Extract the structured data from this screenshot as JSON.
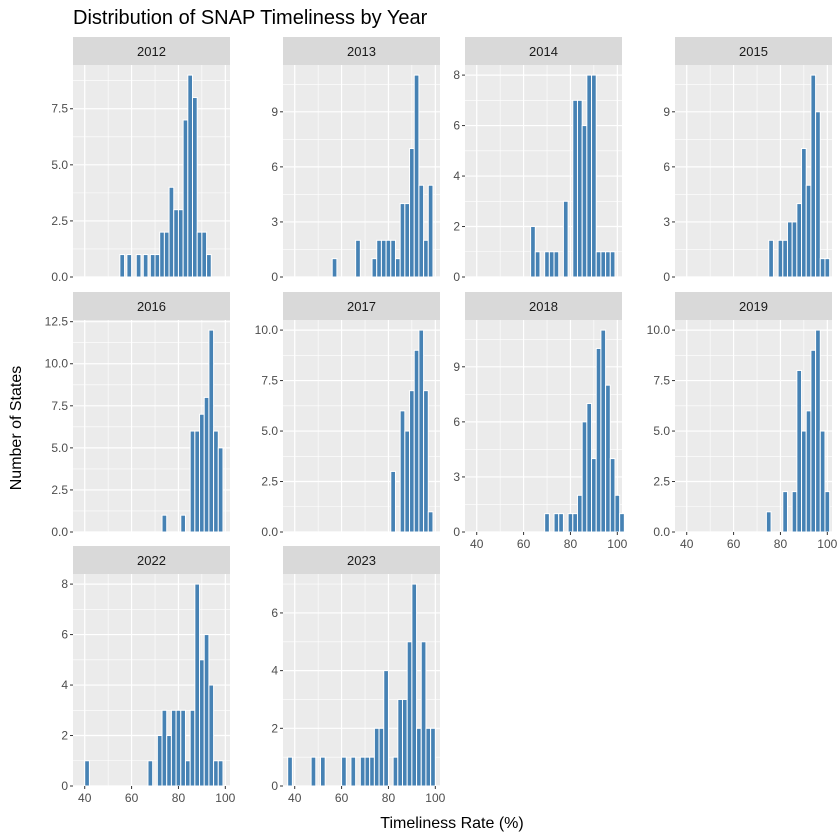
{
  "chart_data": {
    "type": "bar",
    "title": "Distribution of SNAP Timeliness by Year",
    "xlabel": "Timeliness Rate (%)",
    "ylabel": "Number of States",
    "x_ticks": [
      40,
      60,
      80,
      100
    ],
    "x_range": [
      35,
      102
    ],
    "bin_width": 2,
    "fill_color": "#4682B4",
    "panel_bg": "#EBEBEB",
    "strip_bg": "#D9D9D9",
    "grid": true,
    "panels": [
      {
        "year": "2012",
        "y_ticks": [
          0,
          2.5,
          5,
          7.5
        ],
        "y_tick_labels": [
          "0.0",
          "2.5",
          "5.0",
          "7.5"
        ],
        "y_max": 9.45,
        "bins": [
          [
            56,
            1
          ],
          [
            59,
            1
          ],
          [
            63,
            1
          ],
          [
            66,
            1
          ],
          [
            69,
            1
          ],
          [
            71,
            1
          ],
          [
            73,
            2
          ],
          [
            75,
            2
          ],
          [
            77,
            4
          ],
          [
            79,
            3
          ],
          [
            81,
            3
          ],
          [
            83,
            7
          ],
          [
            85,
            9
          ],
          [
            87,
            8
          ],
          [
            89,
            2
          ],
          [
            91,
            2
          ],
          [
            93,
            1
          ]
        ]
      },
      {
        "year": "2013",
        "y_ticks": [
          0,
          3,
          6,
          9
        ],
        "y_tick_labels": [
          "0",
          "3",
          "6",
          "9"
        ],
        "y_max": 11.55,
        "bins": [
          [
            57,
            1
          ],
          [
            67,
            2
          ],
          [
            74,
            1
          ],
          [
            76,
            2
          ],
          [
            78,
            2
          ],
          [
            80,
            2
          ],
          [
            82,
            2
          ],
          [
            84,
            1
          ],
          [
            86,
            4
          ],
          [
            88,
            4
          ],
          [
            90,
            7
          ],
          [
            92,
            11
          ],
          [
            94,
            5
          ],
          [
            96,
            2
          ],
          [
            98,
            5
          ]
        ]
      },
      {
        "year": "2014",
        "y_ticks": [
          0,
          2,
          4,
          6,
          8
        ],
        "y_tick_labels": [
          "0",
          "2",
          "4",
          "6",
          "8"
        ],
        "y_max": 8.4,
        "bins": [
          [
            64,
            2
          ],
          [
            66,
            1
          ],
          [
            70,
            1
          ],
          [
            72,
            1
          ],
          [
            74,
            1
          ],
          [
            78,
            3
          ],
          [
            82,
            7
          ],
          [
            84,
            7
          ],
          [
            86,
            6
          ],
          [
            88,
            8
          ],
          [
            90,
            8
          ],
          [
            92,
            1
          ],
          [
            94,
            1
          ],
          [
            96,
            1
          ],
          [
            98,
            1
          ]
        ]
      },
      {
        "year": "2015",
        "y_ticks": [
          0,
          3,
          6,
          9
        ],
        "y_tick_labels": [
          "0",
          "3",
          "6",
          "9"
        ],
        "y_max": 11.55,
        "bins": [
          [
            76,
            2
          ],
          [
            80,
            2
          ],
          [
            82,
            2
          ],
          [
            84,
            3
          ],
          [
            86,
            3
          ],
          [
            88,
            4
          ],
          [
            90,
            7
          ],
          [
            92,
            5
          ],
          [
            94,
            11
          ],
          [
            96,
            9
          ],
          [
            98,
            1
          ],
          [
            100,
            1
          ]
        ]
      },
      {
        "year": "2016",
        "y_ticks": [
          0,
          2.5,
          5,
          7.5,
          10,
          12.5
        ],
        "y_tick_labels": [
          "0.0",
          "2.5",
          "5.0",
          "7.5",
          "10.0",
          "12.5"
        ],
        "y_max": 12.6,
        "bins": [
          [
            74,
            1
          ],
          [
            82,
            1
          ],
          [
            86,
            6
          ],
          [
            88,
            6
          ],
          [
            90,
            7
          ],
          [
            92,
            8
          ],
          [
            94,
            12
          ],
          [
            96,
            6
          ],
          [
            98,
            5
          ]
        ]
      },
      {
        "year": "2017",
        "y_ticks": [
          0,
          2.5,
          5,
          7.5,
          10
        ],
        "y_tick_labels": [
          "0.0",
          "2.5",
          "5.0",
          "7.5",
          "10.0"
        ],
        "y_max": 10.5,
        "bins": [
          [
            82,
            3
          ],
          [
            86,
            6
          ],
          [
            88,
            5
          ],
          [
            90,
            7
          ],
          [
            92,
            9
          ],
          [
            94,
            10
          ],
          [
            96,
            7
          ],
          [
            98,
            1
          ]
        ]
      },
      {
        "year": "2018",
        "y_ticks": [
          0,
          3,
          6,
          9
        ],
        "y_tick_labels": [
          "0",
          "3",
          "6",
          "9"
        ],
        "y_max": 11.55,
        "bins": [
          [
            70,
            1
          ],
          [
            74,
            1
          ],
          [
            76,
            1
          ],
          [
            80,
            1
          ],
          [
            82,
            1
          ],
          [
            84,
            2
          ],
          [
            86,
            6
          ],
          [
            88,
            7
          ],
          [
            90,
            4
          ],
          [
            92,
            10
          ],
          [
            94,
            11
          ],
          [
            96,
            8
          ],
          [
            98,
            4
          ],
          [
            100,
            2
          ],
          [
            102,
            1
          ]
        ]
      },
      {
        "year": "2019",
        "y_ticks": [
          0,
          2.5,
          5,
          7.5,
          10
        ],
        "y_tick_labels": [
          "0.0",
          "2.5",
          "5.0",
          "7.5",
          "10.0"
        ],
        "y_max": 10.5,
        "bins": [
          [
            75,
            1
          ],
          [
            82,
            2
          ],
          [
            86,
            2
          ],
          [
            88,
            8
          ],
          [
            90,
            5
          ],
          [
            92,
            6
          ],
          [
            94,
            9
          ],
          [
            96,
            10
          ],
          [
            98,
            5
          ],
          [
            100,
            2
          ]
        ]
      },
      {
        "year": "2022",
        "y_ticks": [
          0,
          2,
          4,
          6,
          8
        ],
        "y_tick_labels": [
          "0",
          "2",
          "4",
          "6",
          "8"
        ],
        "y_max": 8.4,
        "bins": [
          [
            41,
            1
          ],
          [
            68,
            1
          ],
          [
            72,
            2
          ],
          [
            74,
            3
          ],
          [
            76,
            2
          ],
          [
            78,
            3
          ],
          [
            80,
            3
          ],
          [
            82,
            3
          ],
          [
            84,
            1
          ],
          [
            86,
            3
          ],
          [
            88,
            8
          ],
          [
            90,
            5
          ],
          [
            92,
            6
          ],
          [
            94,
            4
          ],
          [
            96,
            1
          ],
          [
            98,
            1
          ]
        ]
      },
      {
        "year": "2023",
        "y_ticks": [
          0,
          2,
          4,
          6
        ],
        "y_tick_labels": [
          "0",
          "2",
          "4",
          "6"
        ],
        "y_max": 7.35,
        "bins": [
          [
            38,
            1
          ],
          [
            48,
            1
          ],
          [
            52,
            1
          ],
          [
            61,
            1
          ],
          [
            65,
            1
          ],
          [
            69,
            1
          ],
          [
            71,
            1
          ],
          [
            73,
            1
          ],
          [
            75,
            2
          ],
          [
            77,
            2
          ],
          [
            79,
            4
          ],
          [
            83,
            1
          ],
          [
            85,
            3
          ],
          [
            87,
            3
          ],
          [
            89,
            5
          ],
          [
            91,
            7
          ],
          [
            93,
            2
          ],
          [
            95,
            5
          ],
          [
            97,
            2
          ],
          [
            99,
            2
          ]
        ]
      }
    ]
  }
}
